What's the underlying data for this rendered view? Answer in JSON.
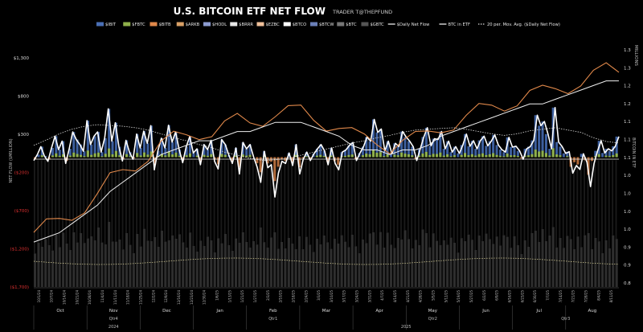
{
  "chart_data": {
    "type": "bar",
    "title": "U.S. BITCOIN ETF NET FLOW",
    "subtitle": "TRADER T@THEPFUND",
    "ylabel_left": "NET FLOW ($MILLION)",
    "ylabel_right": "BITCOIN IN ETF",
    "units_right": "MILLIONS",
    "yticks_left": [
      {
        "label": "$1,300",
        "value": 1300
      },
      {
        "label": "$800",
        "value": 800
      },
      {
        "label": "$300",
        "value": 300
      },
      {
        "label": "($200)",
        "value": -200
      },
      {
        "label": "($700)",
        "value": -700
      },
      {
        "label": "($1,200)",
        "value": -1200
      },
      {
        "label": "($1,700)",
        "value": -1700
      }
    ],
    "ylim_left": [
      -1700,
      1300
    ],
    "yticks_right": [
      "1.3",
      "1.3",
      "1.2",
      "1.2",
      "1.1",
      "1.1",
      "1.1",
      "1.0",
      "1.0",
      "1.0",
      "1.0",
      "0.9",
      "0.9",
      "0.8"
    ],
    "ylim_right": [
      0.8,
      1.35
    ],
    "legend": [
      {
        "name": "$IBIT",
        "color": "#4a6fb5",
        "style": "box"
      },
      {
        "name": "$FBTC",
        "color": "#8fb04a",
        "style": "box"
      },
      {
        "name": "$BITB",
        "color": "#e0884a",
        "style": "box"
      },
      {
        "name": "$ARKB",
        "color": "#d9a066",
        "style": "box"
      },
      {
        "name": "$HODL",
        "color": "#8c9bd0",
        "style": "box"
      },
      {
        "name": "$BRRR",
        "color": "#e8e8e8",
        "style": "box"
      },
      {
        "name": "$EZBC",
        "color": "#f0c09a",
        "style": "box"
      },
      {
        "name": "$BTCO",
        "color": "#ffffff",
        "style": "box"
      },
      {
        "name": "$BTCW",
        "color": "#6a7fb8",
        "style": "box"
      },
      {
        "name": "$BTC",
        "color": "#777777",
        "style": "box"
      },
      {
        "name": "$GBTC",
        "color": "#555555",
        "style": "box"
      },
      {
        "name": "$Daily Net Flow",
        "color": "#ffffff",
        "style": "line"
      },
      {
        "name": "BTC in ETF",
        "color": "#ffffff",
        "style": "line"
      },
      {
        "name": "20 per. Mov. Avg. ($Daily Net Flow)",
        "color": "#dddddd",
        "style": "dotted"
      }
    ],
    "months": [
      "Oct",
      "Nov",
      "Dec",
      "Jan",
      "Feb",
      "Mar",
      "Apr",
      "May",
      "Jun",
      "Jul",
      "Aug"
    ],
    "quarters": [
      "Qtr4",
      "Qtr1",
      "Qtr2",
      "Qtr3"
    ],
    "years": [
      "2024",
      "2025"
    ],
    "date_labels": [
      "10/1/24",
      "10/7/24",
      "10/14/24",
      "10/21/24",
      "10/28/24",
      "11/4/24",
      "11/11/24",
      "11/18/24",
      "11/25/24",
      "12/2/24",
      "12/9/24",
      "12/16/24",
      "12/23/24",
      "12/30/24",
      "1/6/25",
      "1/13/25",
      "1/21/25",
      "1/27/25",
      "2/3/25",
      "2/10/25",
      "2/18/25",
      "2/24/25",
      "3/3/25",
      "3/10/25",
      "3/17/25",
      "3/24/25",
      "3/31/25",
      "4/7/25",
      "4/14/25",
      "4/21/25",
      "4/28/25",
      "5/5/25",
      "5/12/25",
      "5/19/25",
      "5/27/25",
      "6/2/25",
      "6/9/25",
      "6/16/25",
      "6/23/25",
      "6/30/25",
      "7/7/25",
      "7/14/25",
      "7/21/25",
      "7/28/25",
      "8/4/25",
      "8/11/25"
    ],
    "daily_net_flow": [
      -80,
      60,
      250,
      30,
      -100,
      220,
      500,
      180,
      380,
      -150,
      200,
      600,
      420,
      300,
      140,
      870,
      300,
      500,
      600,
      120,
      450,
      1150,
      380,
      820,
      250,
      -90,
      400,
      120,
      -50,
      550,
      220,
      620,
      330,
      750,
      -300,
      150,
      450,
      220,
      760,
      360,
      600,
      180,
      -130,
      250,
      490,
      100,
      200,
      -180,
      300,
      180,
      400,
      -100,
      -280,
      420,
      300,
      50,
      -150,
      220,
      -400,
      350,
      200,
      300,
      0,
      -240,
      -600,
      140,
      -250,
      -180,
      -950,
      -380,
      -100,
      -150,
      100,
      -200,
      300,
      -400,
      -50,
      120,
      -80,
      80,
      200,
      300,
      150,
      -180,
      220,
      -150,
      -300,
      120,
      170,
      280,
      350,
      -80,
      100,
      250,
      480,
      380,
      900,
      590,
      670,
      150,
      380,
      80,
      330,
      250,
      610,
      480,
      380,
      250,
      -80,
      200,
      480,
      700,
      270,
      440,
      420,
      610,
      200,
      380,
      120,
      250,
      90,
      290,
      550,
      260,
      390,
      200,
      400,
      500,
      270,
      380,
      530,
      290,
      180,
      120,
      470,
      240,
      260,
      150,
      -50,
      200,
      250,
      400,
      1000,
      750,
      850,
      550,
      200,
      1180,
      360,
      250,
      90,
      130,
      -380,
      -200,
      -290,
      80,
      -120,
      -700,
      -150,
      150,
      390,
      100,
      200,
      150,
      260,
      490
    ],
    "btc_in_etf_millions": [
      0.95,
      0.96,
      0.97,
      0.99,
      1.01,
      1.03,
      1.06,
      1.08,
      1.1,
      1.12,
      1.14,
      1.15,
      1.16,
      1.17,
      1.17,
      1.18,
      1.19,
      1.19,
      1.2,
      1.21,
      1.21,
      1.21,
      1.2,
      1.19,
      1.18,
      1.16,
      1.15,
      1.15,
      1.14,
      1.15,
      1.15,
      1.16,
      1.18,
      1.19,
      1.2,
      1.21,
      1.22,
      1.23,
      1.24,
      1.25,
      1.25,
      1.26,
      1.27,
      1.28,
      1.29,
      1.3,
      1.3
    ],
    "moving_avg_20": [
      50,
      120,
      200,
      260,
      300,
      320,
      310,
      300,
      280,
      250,
      200,
      150,
      110,
      60,
      20,
      -40,
      -80,
      -120,
      -150,
      -140,
      -120,
      -80,
      -40,
      0,
      40,
      80,
      110,
      150,
      180,
      220,
      250,
      260,
      270,
      280,
      260,
      230,
      200,
      180,
      200,
      240,
      260,
      280,
      250,
      220,
      150,
      100,
      80
    ]
  }
}
